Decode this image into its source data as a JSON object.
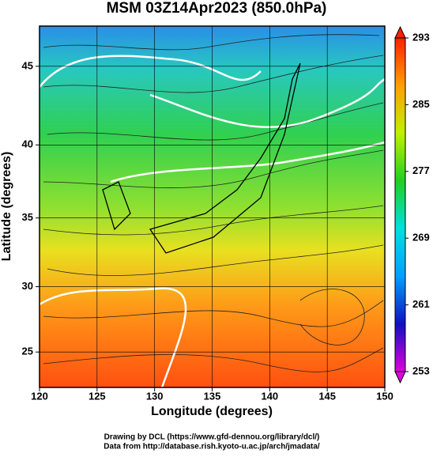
{
  "chart_data": {
    "type": "map",
    "title": "MSM 03Z14Apr2023 (850.0hPa)",
    "x_label": "Longitude (degrees)",
    "y_label": "Latitude  (degrees)",
    "projection": "mercator",
    "xlim": [
      120,
      150
    ],
    "xticks": [
      120,
      125,
      130,
      135,
      140,
      145,
      150
    ],
    "ylim": [
      22.2,
      47.4
    ],
    "yticks": [
      25,
      30,
      35,
      40,
      45
    ],
    "grid": true,
    "colorbar": {
      "lim": [
        253,
        293
      ],
      "ticks": [
        253,
        261,
        269,
        277,
        285,
        293
      ],
      "colors": [
        "#e000e0",
        "#1010c0",
        "#00a0ff",
        "#00e0e0",
        "#20d020",
        "#c0f000",
        "#ffa000",
        "#ff2000"
      ]
    },
    "credits": [
      "Drawing by DCL (https://www.gfd-dennou.org/library/dcl/)",
      "Data from http://database.rish.kyoto-u.ac.jp/arch/jmadata/"
    ]
  }
}
